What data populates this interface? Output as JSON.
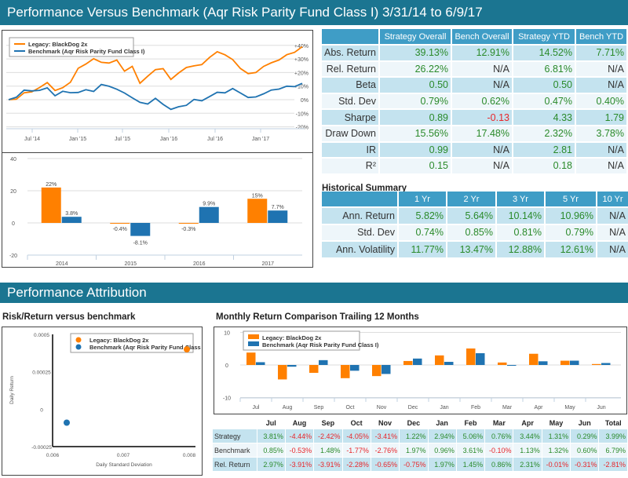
{
  "header": {
    "title": "Performance Versus Benchmark (Aqr Risk Parity Fund Class I) 3/31/14 to 6/9/17"
  },
  "colors": {
    "strategy": "#ff8000",
    "benchmark": "#1f73b1",
    "header": "#1b7591",
    "positive": "#2a8a2a",
    "negative": "#e8262a"
  },
  "legend": {
    "strategy": "Legacy: BlackDog 2x",
    "benchmark": "Benchmark (Aqr Risk Parity Fund Class I)"
  },
  "chart_data": [
    {
      "type": "line",
      "ylim": [
        -20,
        40
      ],
      "yticks": [
        "+40%",
        "+30%",
        "+20%",
        "+10%",
        "0%",
        "-10%",
        "-20%"
      ],
      "xticks": [
        "Jul '14",
        "Jan '15",
        "Jul '15",
        "Jan '16",
        "Jul '16",
        "Jan '17"
      ],
      "x": [
        "2014-04",
        "2014-05",
        "2014-06",
        "2014-07",
        "2014-08",
        "2014-09",
        "2014-10",
        "2014-11",
        "2014-12",
        "2015-01",
        "2015-02",
        "2015-03",
        "2015-04",
        "2015-05",
        "2015-06",
        "2015-07",
        "2015-08",
        "2015-09",
        "2015-10",
        "2015-11",
        "2015-12",
        "2016-01",
        "2016-02",
        "2016-03",
        "2016-04",
        "2016-05",
        "2016-06",
        "2016-07",
        "2016-08",
        "2016-09",
        "2016-10",
        "2016-11",
        "2016-12",
        "2017-01",
        "2017-02",
        "2017-03",
        "2017-04",
        "2017-05",
        "2017-06"
      ],
      "series": [
        {
          "name": "Legacy: BlackDog 2x",
          "values": [
            0,
            1,
            4,
            7,
            8,
            13,
            7,
            8,
            14,
            22,
            27,
            30,
            27,
            28,
            28,
            22,
            24,
            12,
            18,
            21,
            24,
            14,
            20,
            24,
            24,
            27,
            30,
            36,
            33,
            29,
            24,
            18,
            21,
            24,
            27,
            30,
            32,
            36,
            39
          ]
        },
        {
          "name": "Benchmark (Aqr Risk Parity Fund Class I)",
          "values": [
            0,
            3,
            6,
            7,
            7,
            8,
            4,
            5,
            6,
            5,
            7,
            7,
            10,
            11,
            7,
            5,
            2,
            -3,
            -2,
            0,
            -3,
            -7,
            -6,
            -3,
            -1,
            0,
            2,
            5,
            6,
            7,
            6,
            1,
            2,
            5,
            6,
            9,
            9,
            10,
            12
          ]
        }
      ]
    },
    {
      "type": "bar",
      "ylim": [
        -20,
        40
      ],
      "yticks": [
        "40",
        "20",
        "0",
        "-20"
      ],
      "categories": [
        "2014",
        "2015",
        "2016",
        "2017"
      ],
      "series": [
        {
          "name": "Legacy: BlackDog 2x",
          "values": [
            22,
            -0.4,
            -0.3,
            15
          ],
          "labels": [
            "22%",
            "-0.4%",
            "-0.3%",
            "15%"
          ]
        },
        {
          "name": "Benchmark (Aqr Risk Parity Fund Class I)",
          "values": [
            3.8,
            -8.1,
            9.9,
            7.7
          ],
          "labels": [
            "3.8%",
            "-8.1%",
            "9.9%",
            "7.7%"
          ]
        }
      ]
    },
    {
      "type": "scatter",
      "title": "Risk/Return versus benchmark",
      "xlabel": "Daily Standard Deviation",
      "ylabel": "Daily Return",
      "xlim": [
        0.006,
        0.008
      ],
      "ylim": [
        -0.00025,
        0.0005
      ],
      "xticks": [
        "0.006",
        "0.007",
        "0.008"
      ],
      "yticks": [
        "0.0005",
        "0.00025",
        "0",
        "-0.00025"
      ],
      "series": [
        {
          "name": "Legacy: BlackDog 2x",
          "x": 0.0079,
          "y": 0.0004
        },
        {
          "name": "Benchmark (Aqr Risk Parity Fund Class I)",
          "x": 0.0062,
          "y": -9e-05
        }
      ]
    },
    {
      "type": "bar",
      "title": "Monthly Return Comparison Trailing 12 Months",
      "ylim": [
        -10,
        10
      ],
      "yticks": [
        "10",
        "0",
        "-10"
      ],
      "categories": [
        "Jul",
        "Aug",
        "Sep",
        "Oct",
        "Nov",
        "Dec",
        "Jan",
        "Feb",
        "Mar",
        "Apr",
        "May",
        "Jun"
      ],
      "series": [
        {
          "name": "Legacy: BlackDog 2x",
          "values": [
            3.81,
            -4.44,
            -2.42,
            -4.05,
            -3.41,
            1.22,
            2.94,
            5.06,
            0.76,
            3.44,
            1.31,
            0.29
          ]
        },
        {
          "name": "Benchmark (Aqr Risk Parity Fund Class I)",
          "values": [
            0.85,
            -0.53,
            1.48,
            -1.77,
            -2.76,
            1.97,
            0.96,
            3.61,
            -0.1,
            1.13,
            1.32,
            0.6
          ]
        }
      ]
    }
  ],
  "stats": {
    "columns": [
      "Strategy Overall",
      "Bench Overall",
      "Strategy YTD",
      "Bench YTD"
    ],
    "rows": [
      {
        "label": "Abs. Return",
        "values": [
          "39.13%",
          "12.91%",
          "14.52%",
          "7.71%"
        ]
      },
      {
        "label": "Rel. Return",
        "values": [
          "26.22%",
          "N/A",
          "6.81%",
          "N/A"
        ]
      },
      {
        "label": "Beta",
        "values": [
          "0.50",
          "N/A",
          "0.50",
          "N/A"
        ]
      },
      {
        "label": "Std. Dev",
        "values": [
          "0.79%",
          "0.62%",
          "0.47%",
          "0.40%"
        ]
      },
      {
        "label": "Sharpe",
        "values": [
          "0.89",
          "-0.13",
          "4.33",
          "1.79"
        ]
      },
      {
        "label": "Draw Down",
        "values": [
          "15.56%",
          "17.48%",
          "2.32%",
          "3.78%"
        ]
      },
      {
        "label": "IR",
        "values": [
          "0.99",
          "N/A",
          "2.81",
          "N/A"
        ]
      },
      {
        "label": "R²",
        "values": [
          "0.15",
          "N/A",
          "0.18",
          "N/A"
        ]
      }
    ]
  },
  "historical": {
    "title": "Historical Summary",
    "columns": [
      "1 Yr",
      "2 Yr",
      "3 Yr",
      "5 Yr",
      "10 Yr"
    ],
    "rows": [
      {
        "label": "Ann. Return",
        "values": [
          "5.82%",
          "5.64%",
          "10.14%",
          "10.96%",
          "N/A"
        ]
      },
      {
        "label": "Std. Dev",
        "values": [
          "0.74%",
          "0.85%",
          "0.81%",
          "0.79%",
          "N/A"
        ]
      },
      {
        "label": "Ann. Volatility",
        "values": [
          "11.77%",
          "13.47%",
          "12.88%",
          "12.61%",
          "N/A"
        ]
      }
    ]
  },
  "attribution": {
    "title": "Performance Attribution",
    "risk_title": "Risk/Return versus benchmark",
    "monthly_title": "Monthly Return Comparison Trailing 12 Months"
  },
  "monthly": {
    "columns": [
      "Jul",
      "Aug",
      "Sep",
      "Oct",
      "Nov",
      "Dec",
      "Jan",
      "Feb",
      "Mar",
      "Apr",
      "May",
      "Jun",
      "Total"
    ],
    "rows": [
      {
        "label": "Strategy",
        "values": [
          "3.81%",
          "-4.44%",
          "-2.42%",
          "-4.05%",
          "-3.41%",
          "1.22%",
          "2.94%",
          "5.06%",
          "0.76%",
          "3.44%",
          "1.31%",
          "0.29%",
          "3.99%"
        ]
      },
      {
        "label": "Benchmark",
        "values": [
          "0.85%",
          "-0.53%",
          "1.48%",
          "-1.77%",
          "-2.76%",
          "1.97%",
          "0.96%",
          "3.61%",
          "-0.10%",
          "1.13%",
          "1.32%",
          "0.60%",
          "6.79%"
        ]
      },
      {
        "label": "Rel. Return",
        "values": [
          "2.97%",
          "-3.91%",
          "-3.91%",
          "-2.28%",
          "-0.65%",
          "-0.75%",
          "1.97%",
          "1.45%",
          "0.86%",
          "2.31%",
          "-0.01%",
          "-0.31%",
          "-2.81%"
        ]
      }
    ]
  }
}
